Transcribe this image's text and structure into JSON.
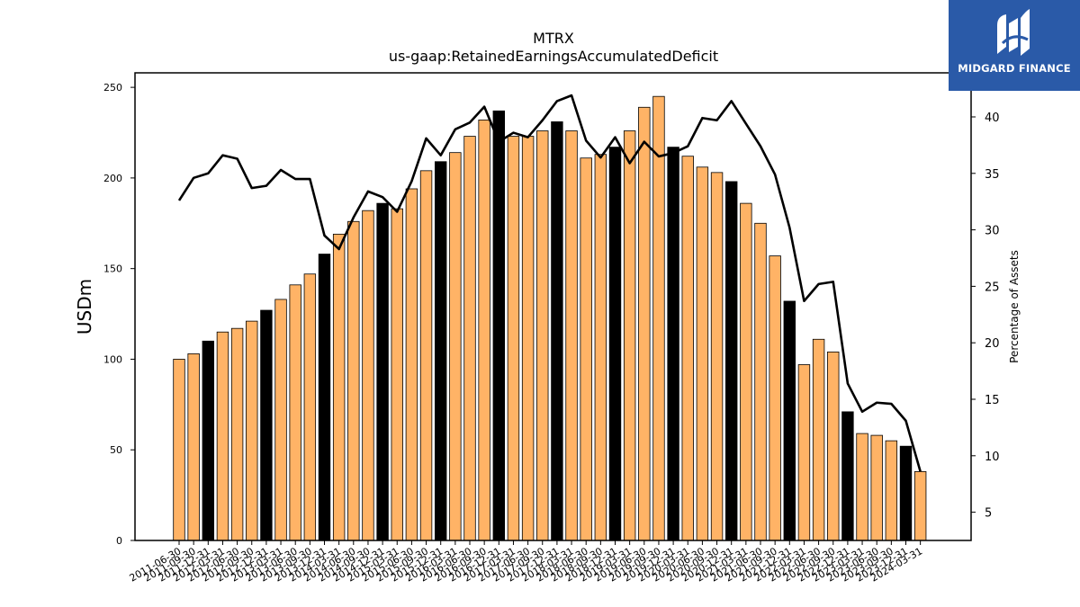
{
  "chart_data": {
    "type": "bar",
    "title": "MTRX",
    "subtitle": "us-gaap:RetainedEarningsAccumulatedDeficit",
    "ylabel": "USDm",
    "y2label": "Percentage of Assets",
    "ylim": [
      0,
      258
    ],
    "y2lim": [
      2.5,
      43.9
    ],
    "y_ticks": [
      0,
      50,
      100,
      150,
      200,
      250
    ],
    "y2_ticks": [
      5,
      10,
      15,
      20,
      25,
      30,
      35,
      40
    ],
    "categories": [
      "2011-06-30",
      "2011-09-30",
      "2011-12-31",
      "2012-03-31",
      "2012-06-30",
      "2012-09-30",
      "2012-12-31",
      "2013-03-31",
      "2013-06-30",
      "2013-09-30",
      "2013-12-31",
      "2014-03-31",
      "2014-06-30",
      "2014-09-30",
      "2014-12-31",
      "2015-03-31",
      "2015-06-30",
      "2015-09-30",
      "2015-12-31",
      "2016-03-31",
      "2016-06-30",
      "2016-09-30",
      "2016-12-31",
      "2017-03-31",
      "2017-06-30",
      "2017-09-30",
      "2017-12-31",
      "2018-03-31",
      "2018-06-30",
      "2018-09-30",
      "2018-12-31",
      "2019-03-31",
      "2019-06-30",
      "2019-09-30",
      "2019-12-31",
      "2020-03-31",
      "2020-06-30",
      "2020-09-30",
      "2020-12-31",
      "2021-03-31",
      "2021-06-30",
      "2021-09-30",
      "2021-12-31",
      "2022-03-31",
      "2022-06-30",
      "2022-09-30",
      "2022-12-31",
      "2023-03-31",
      "2023-06-30",
      "2023-09-30",
      "2023-12-31",
      "2024-03-31"
    ],
    "series": [
      {
        "kind": "bar",
        "axis": "left",
        "values": [
          100,
          103,
          110,
          115,
          117,
          121,
          127,
          133,
          141,
          147,
          158,
          169,
          176,
          182,
          186,
          183,
          194,
          204,
          209,
          214,
          223,
          232,
          237,
          223,
          223,
          226,
          231,
          226,
          211,
          213,
          217,
          226,
          239,
          245,
          217,
          212,
          206,
          203,
          198,
          186,
          175,
          157,
          132,
          97,
          111,
          104,
          71,
          59,
          58,
          55,
          52,
          38
        ],
        "colors": [
          "#ffb366",
          "#ffb366",
          "#000000",
          "#ffb366",
          "#ffb366",
          "#ffb366",
          "#000000",
          "#ffb366",
          "#ffb366",
          "#ffb366",
          "#000000",
          "#ffb366",
          "#ffb366",
          "#ffb366",
          "#000000",
          "#ffb366",
          "#ffb366",
          "#ffb366",
          "#000000",
          "#ffb366",
          "#ffb366",
          "#ffb366",
          "#000000",
          "#ffb366",
          "#ffb366",
          "#ffb366",
          "#000000",
          "#ffb366",
          "#ffb366",
          "#ffb366",
          "#000000",
          "#ffb366",
          "#ffb366",
          "#ffb366",
          "#000000",
          "#ffb366",
          "#ffb366",
          "#ffb366",
          "#000000",
          "#ffb366",
          "#ffb366",
          "#ffb366",
          "#000000",
          "#ffb366",
          "#ffb366",
          "#ffb366",
          "#000000",
          "#ffb366",
          "#ffb366",
          "#ffb366",
          "#000000",
          "#ffb366"
        ]
      },
      {
        "kind": "line",
        "axis": "right",
        "color": "#000000",
        "values": [
          32.6,
          34.6,
          35.0,
          36.6,
          36.3,
          33.7,
          33.9,
          35.3,
          34.5,
          34.5,
          29.5,
          28.3,
          31.1,
          33.4,
          32.9,
          31.6,
          34.3,
          38.1,
          36.6,
          38.9,
          39.5,
          40.9,
          37.8,
          38.6,
          38.2,
          39.7,
          41.4,
          41.9,
          37.9,
          36.4,
          38.2,
          35.9,
          37.8,
          36.5,
          36.8,
          37.4,
          39.9,
          39.7,
          41.4,
          39.4,
          37.4,
          34.9,
          30.2,
          23.7,
          25.2,
          25.4,
          16.4,
          13.9,
          14.7,
          14.6,
          13.1,
          8.6
        ]
      }
    ]
  },
  "logo": {
    "text": "MIDGARD FINANCE"
  }
}
